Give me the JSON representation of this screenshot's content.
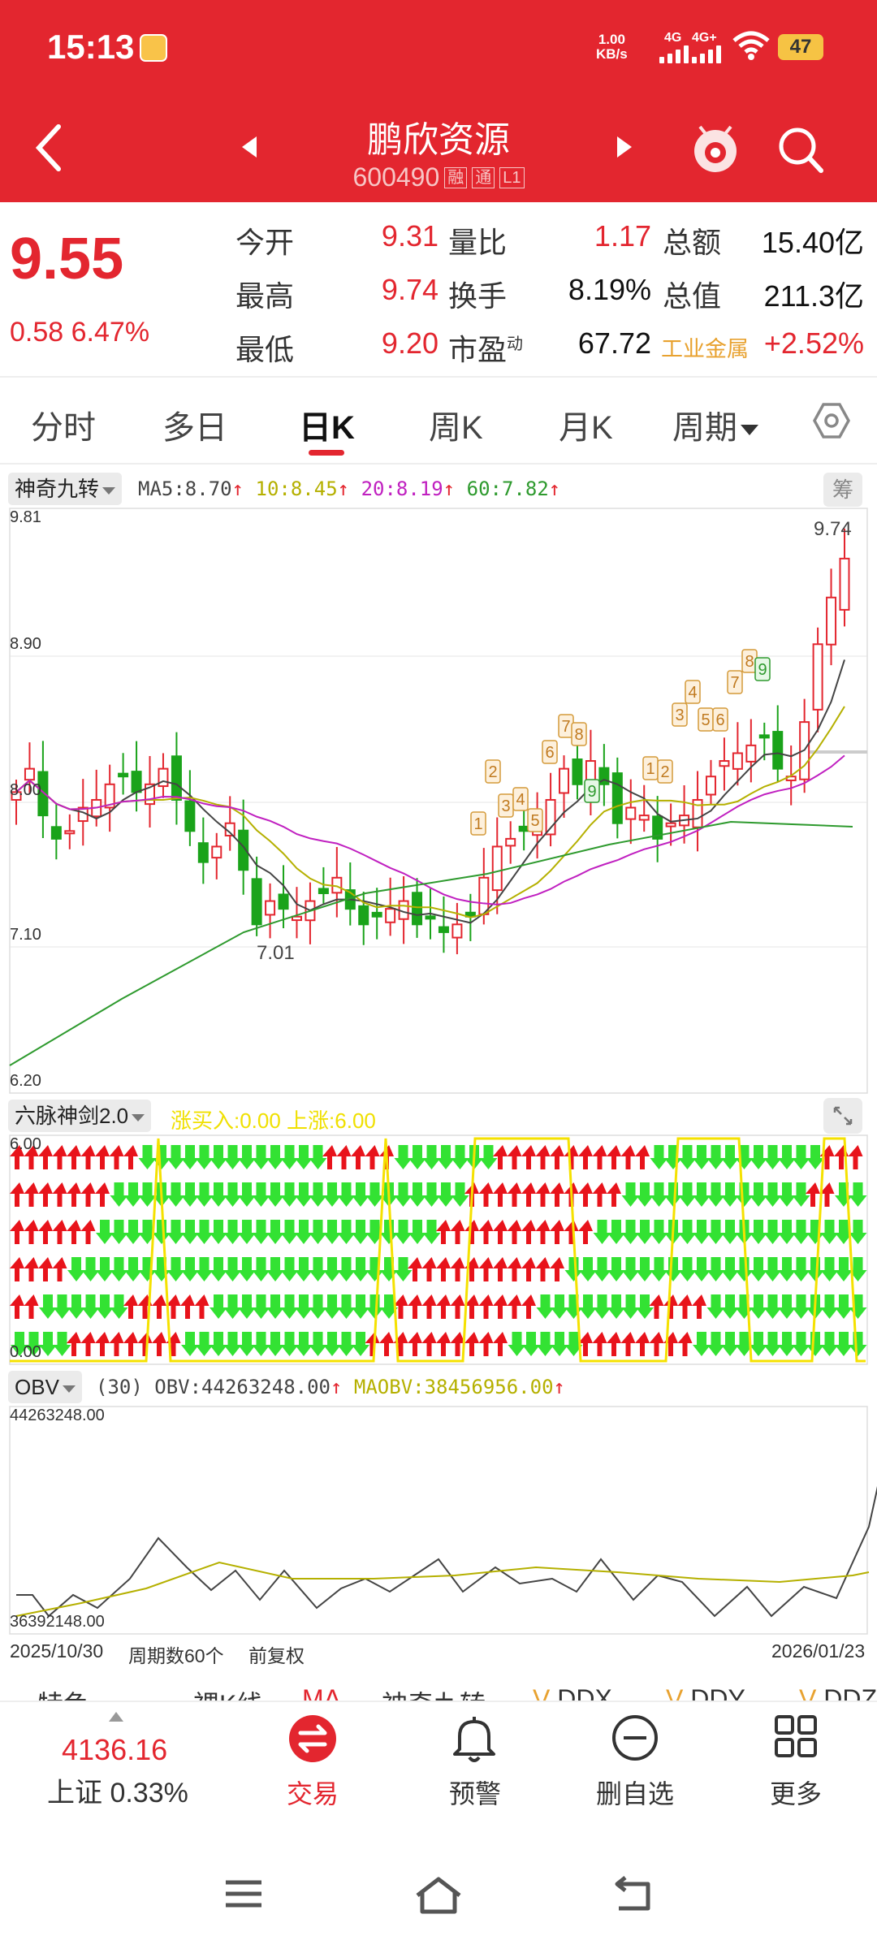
{
  "status_bar": {
    "time": "15:13",
    "net_speed": "1.00",
    "net_unit": "KB/s",
    "sim1": "4G",
    "sim2": "4G+",
    "battery": "47"
  },
  "header": {
    "stock_name": "鹏欣资源",
    "stock_code": "600490",
    "tags": [
      "融",
      "通",
      "L1"
    ]
  },
  "quote": {
    "price": "9.55",
    "change": "0.58",
    "change_pct": "6.47%",
    "open_label": "今开",
    "open": "9.31",
    "high_label": "最高",
    "high": "9.74",
    "low_label": "最低",
    "low": "9.20",
    "vol_ratio_label": "量比",
    "vol_ratio": "1.17",
    "turnover_label": "换手",
    "turnover": "8.19%",
    "pe_label": "市盈",
    "pe_sup": "动",
    "pe": "67.72",
    "amount_label": "总额",
    "amount": "15.40亿",
    "mktcap_label": "总值",
    "mktcap": "211.3亿",
    "sector": "工业金属",
    "sector_pct": "+2.52%"
  },
  "tabs": [
    "分时",
    "多日",
    "日K",
    "周K",
    "月K",
    "周期"
  ],
  "active_tab": "日K",
  "main_chart": {
    "indicator": "神奇九转",
    "ma5": "MA5:8.70",
    "ma10": "10:8.45",
    "ma20": "20:8.19",
    "ma60": "60:7.82",
    "chip": "筹",
    "y_labels": [
      "9.81",
      "8.90",
      "8.00",
      "7.10",
      "6.20"
    ],
    "high_label": "9.74",
    "low_label": "7.01",
    "colors": {
      "up": "#e3262f",
      "down": "#1aa31a",
      "ma5": "#444444",
      "ma10": "#b5b000",
      "ma20": "#c020c0",
      "ma60": "#2e9a2e"
    }
  },
  "nine_labels": [
    "1",
    "2",
    "3",
    "4",
    "5",
    "6",
    "7",
    "8",
    "9",
    "1",
    "2",
    "3",
    "4",
    "5",
    "6",
    "7",
    "8",
    "9"
  ],
  "sword": {
    "indicator": "六脉神剑2.0",
    "legend": "涨买入:0.00 上涨:6.00",
    "top": "6.00",
    "bottom": "0.00"
  },
  "obv": {
    "indicator": "OBV",
    "legend": "(30) OBV:44263248.00",
    "maobv": "MAOBV:38456956.00",
    "top": "44263248.00",
    "bottom": "36392148.00"
  },
  "footer_axis": {
    "start": "2025/10/30",
    "mid": "周期数60个",
    "adj": "前复权",
    "end": "2026/01/23"
  },
  "strip_items": [
    "特色",
    "裸K线",
    "MA",
    "神奇九转",
    "DDX",
    "DDY",
    "DDZ"
  ],
  "bottom_nav": {
    "index_value": "4136.16",
    "index_label": "上证 0.33%",
    "items": [
      "交易",
      "预警",
      "删自选",
      "更多"
    ]
  }
}
